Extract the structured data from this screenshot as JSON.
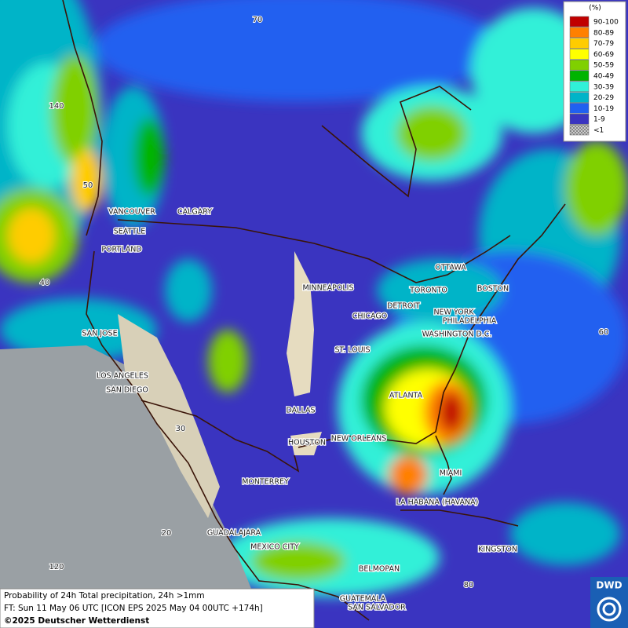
{
  "legend": {
    "title": "(%)",
    "items": [
      {
        "label": "90-100",
        "color": "#c00000"
      },
      {
        "label": "80-89",
        "color": "#ff8000"
      },
      {
        "label": "70-79",
        "color": "#ffcc00"
      },
      {
        "label": "60-69",
        "color": "#ffff00"
      },
      {
        "label": "50-59",
        "color": "#80d000"
      },
      {
        "label": "40-49",
        "color": "#00b400"
      },
      {
        "label": "30-39",
        "color": "#30f0d8"
      },
      {
        "label": "20-29",
        "color": "#00b4c8"
      },
      {
        "label": "10-19",
        "color": "#2060f0"
      },
      {
        "label": "1-9",
        "color": "#3a34c0"
      },
      {
        "label": "<1",
        "color": "#9aa0a4"
      }
    ]
  },
  "cities": [
    "VANCOUVER",
    "CALGARY",
    "SEATTLE",
    "PORTLAND",
    "SAN JOSE",
    "LOS ANGELES",
    "SAN DIEGO",
    "MINNEAPOLIS",
    "TORONTO",
    "OTTAWA",
    "BOSTON",
    "DETROIT",
    "CHICAGO",
    "NEW YORK",
    "PHILADELPHIA",
    "WASHINGTON D.C.",
    "ST. LOUIS",
    "ATLANTA",
    "DALLAS",
    "HOUSTON",
    "NEW ORLEANS",
    "MIAMI",
    "MONTERREY",
    "LA HABANA (HAVANA)",
    "GUADALAJARA",
    "MEXICO CITY",
    "KINGSTON",
    "BELMOPAN",
    "GUATEMALA",
    "SAN SALVADOR"
  ],
  "grid_labels": [
    "70",
    "140",
    "50",
    "40",
    "30",
    "20",
    "60",
    "80",
    "120"
  ],
  "caption": {
    "line1": "Probability of 24h Total precipitation, 24h >1mm",
    "line2": "FT: Sun 11 May 06 UTC [ICON EPS 2025 May 04 00UTC +174h]",
    "line3": "©2025 Deutscher Wetterdienst"
  },
  "logo": "DWD"
}
